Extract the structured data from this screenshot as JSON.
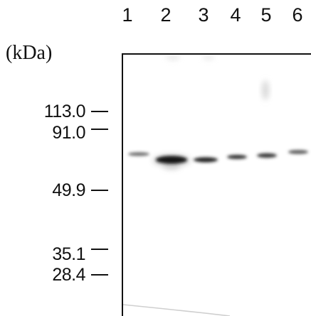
{
  "lanes": [
    "1",
    "2",
    "3",
    "4",
    "5",
    "6"
  ],
  "unit": "(kDa)",
  "markers": [
    "113.0",
    "91.0",
    "49.9",
    "35.1",
    "28.4"
  ]
}
